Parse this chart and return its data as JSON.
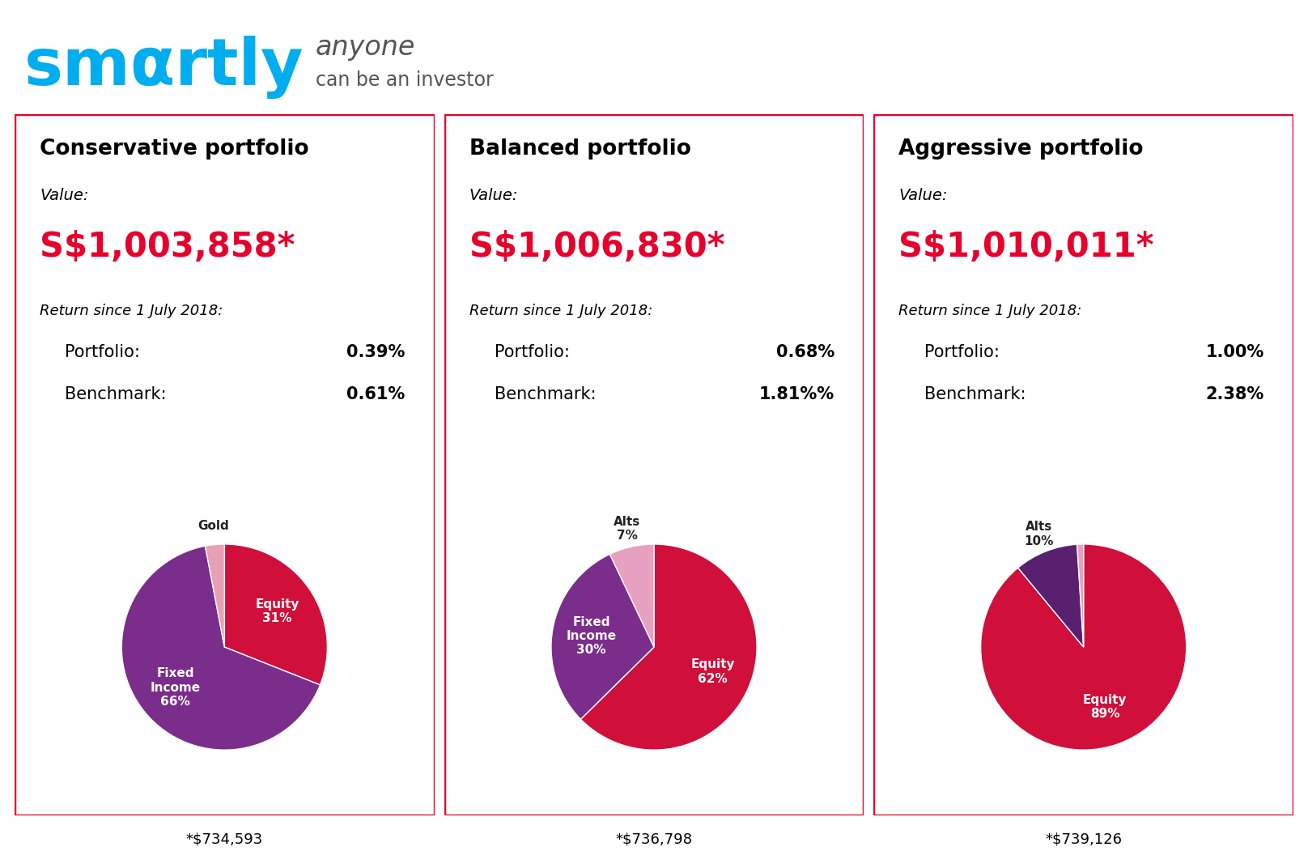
{
  "logo_color": "#00AEEF",
  "logo_gray": "#555555",
  "background_color": "#ffffff",
  "border_color": "#e8002d",
  "portfolios": [
    {
      "title": "Conservative portfolio",
      "value": "S$1,003,858*",
      "return_label": "Return since 1 July 2018:",
      "portfolio_return": "0.39%",
      "benchmark_return": "0.61%",
      "footnote": "*$734,593",
      "pie_slices": [
        {
          "label": "Equity\n31%",
          "pct": 31,
          "color": "#d0103a",
          "text_color": "#ffffff",
          "outside": false
        },
        {
          "label": "Fixed\nIncome\n66%",
          "pct": 66,
          "color": "#7b2d8b",
          "text_color": "#ffffff",
          "outside": false
        },
        {
          "label": "Gold",
          "pct": 3,
          "color": "#e8a0b4",
          "text_color": "#333333",
          "outside": true
        }
      ],
      "startangle": 90
    },
    {
      "title": "Balanced portfolio",
      "value": "S$1,006,830*",
      "return_label": "Return since 1 July 2018:",
      "portfolio_return": "0.68%",
      "benchmark_return": "1.81%%",
      "footnote": "*$736,798",
      "pie_slices": [
        {
          "label": "Equity\n62%",
          "pct": 62,
          "color": "#d0103a",
          "text_color": "#ffffff",
          "outside": false
        },
        {
          "label": "Fixed\nIncome\n30%",
          "pct": 30,
          "color": "#7b2d8b",
          "text_color": "#ffffff",
          "outside": false
        },
        {
          "label": "Alts\n7%",
          "pct": 7,
          "color": "#e8a0c0",
          "text_color": "#333333",
          "outside": true
        }
      ],
      "startangle": 90
    },
    {
      "title": "Aggressive portfolio",
      "value": "S$1,010,011*",
      "return_label": "Return since 1 July 2018:",
      "portfolio_return": "1.00%",
      "benchmark_return": "2.38%",
      "footnote": "*$739,126",
      "pie_slices": [
        {
          "label": "Equity\n89%",
          "pct": 89,
          "color": "#d0103a",
          "text_color": "#ffffff",
          "outside": false
        },
        {
          "label": "Alts\n10%",
          "pct": 10,
          "color": "#5a2070",
          "text_color": "#333333",
          "outside": true
        },
        {
          "label": "",
          "pct": 1,
          "color": "#e8a0c0",
          "text_color": "#333333",
          "outside": false
        }
      ],
      "startangle": 90
    }
  ],
  "value_color": "#e8002d",
  "title_fontsize": 19,
  "value_fontsize": 30,
  "label_fontsize": 14,
  "return_label_fontsize": 13,
  "return_fontsize": 15,
  "footnote_fontsize": 13,
  "pie_label_fontsize": 11
}
